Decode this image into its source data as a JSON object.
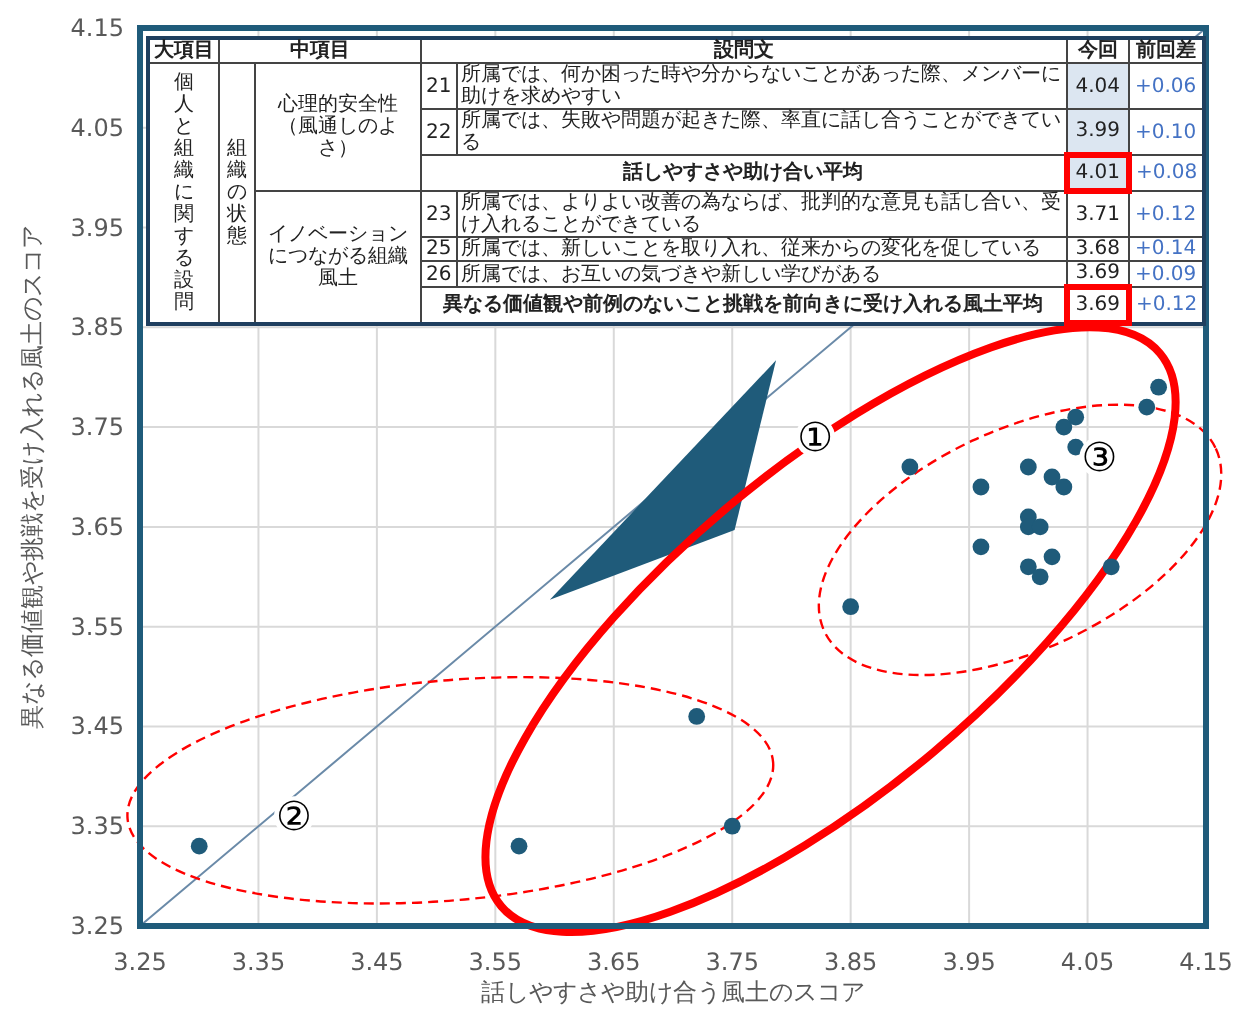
{
  "chart_data": {
    "type": "scatter",
    "xlabel": "話しやすさや助け合う風土のスコア",
    "ylabel": "異なる価値観や挑戦を受け入れる風土のスコア",
    "xlim": [
      3.25,
      4.15
    ],
    "ylim": [
      3.25,
      4.15
    ],
    "xticks": [
      3.25,
      3.35,
      3.45,
      3.55,
      3.65,
      3.75,
      3.85,
      3.95,
      4.05,
      4.15
    ],
    "yticks": [
      3.25,
      3.35,
      3.45,
      3.55,
      3.65,
      3.75,
      3.85,
      3.95,
      4.05,
      4.15
    ],
    "grid": true,
    "marker": "circle",
    "series": [
      {
        "type": "scatter",
        "color": "#1f5b7a",
        "x": [
          3.3,
          3.57,
          3.72,
          3.75,
          3.85,
          3.9,
          3.96,
          3.96,
          4.0,
          4.02,
          4.03,
          4.0,
          4.0,
          4.01,
          4.0,
          4.02,
          4.01,
          4.07,
          4.03,
          4.04,
          4.04,
          4.1,
          4.11
        ],
        "values": [
          3.33,
          3.33,
          3.46,
          3.35,
          3.57,
          3.71,
          3.69,
          3.63,
          3.71,
          3.7,
          3.69,
          3.66,
          3.65,
          3.65,
          3.61,
          3.62,
          3.6,
          3.61,
          3.75,
          3.76,
          3.73,
          3.77,
          3.79
        ]
      },
      {
        "type": "line",
        "color": "#6a8aa8",
        "marker": "none",
        "x": [
          3.25,
          4.15
        ],
        "values": [
          3.25,
          4.15
        ]
      }
    ],
    "annotations": [
      {
        "text": "①",
        "x": 3.82,
        "y": 3.74
      },
      {
        "text": "②",
        "x": 3.38,
        "y": 3.36
      },
      {
        "text": "③",
        "x": 4.06,
        "y": 3.72
      },
      "大項目",
      "中項目",
      "設問文",
      "今回",
      "前回差",
      "個人と組織に関する設問",
      "組織の状態",
      "心理的安全性（風通しのよさ）",
      "イノベーションにつながる組織風土",
      "21",
      "所属では、何か困った時や分からないことがあった際、メンバーに助けを求めやすい",
      "4.04",
      "+0.06",
      "22",
      "所属では、失敗や問題が起きた際、率直に話し合うことができている",
      "3.99",
      "+0.10",
      "話しやすさや助け合い平均",
      "4.01",
      "+0.08",
      "23",
      "所属では、よりよい改善の為ならば、批判的な意見も話し合い、受け入れることができている",
      "3.71",
      "+0.12",
      "25",
      "所属では、新しいことを取り入れ、従来からの変化を促している",
      "3.68",
      "+0.14",
      "26",
      "所属では、お互いの気づきや新しい学びがある",
      "3.69",
      "+0.09",
      "異なる価値観や前例のないこと挑戦を前向きに受け入れる風土平均",
      "3.69",
      "+0.12"
    ]
  }
}
